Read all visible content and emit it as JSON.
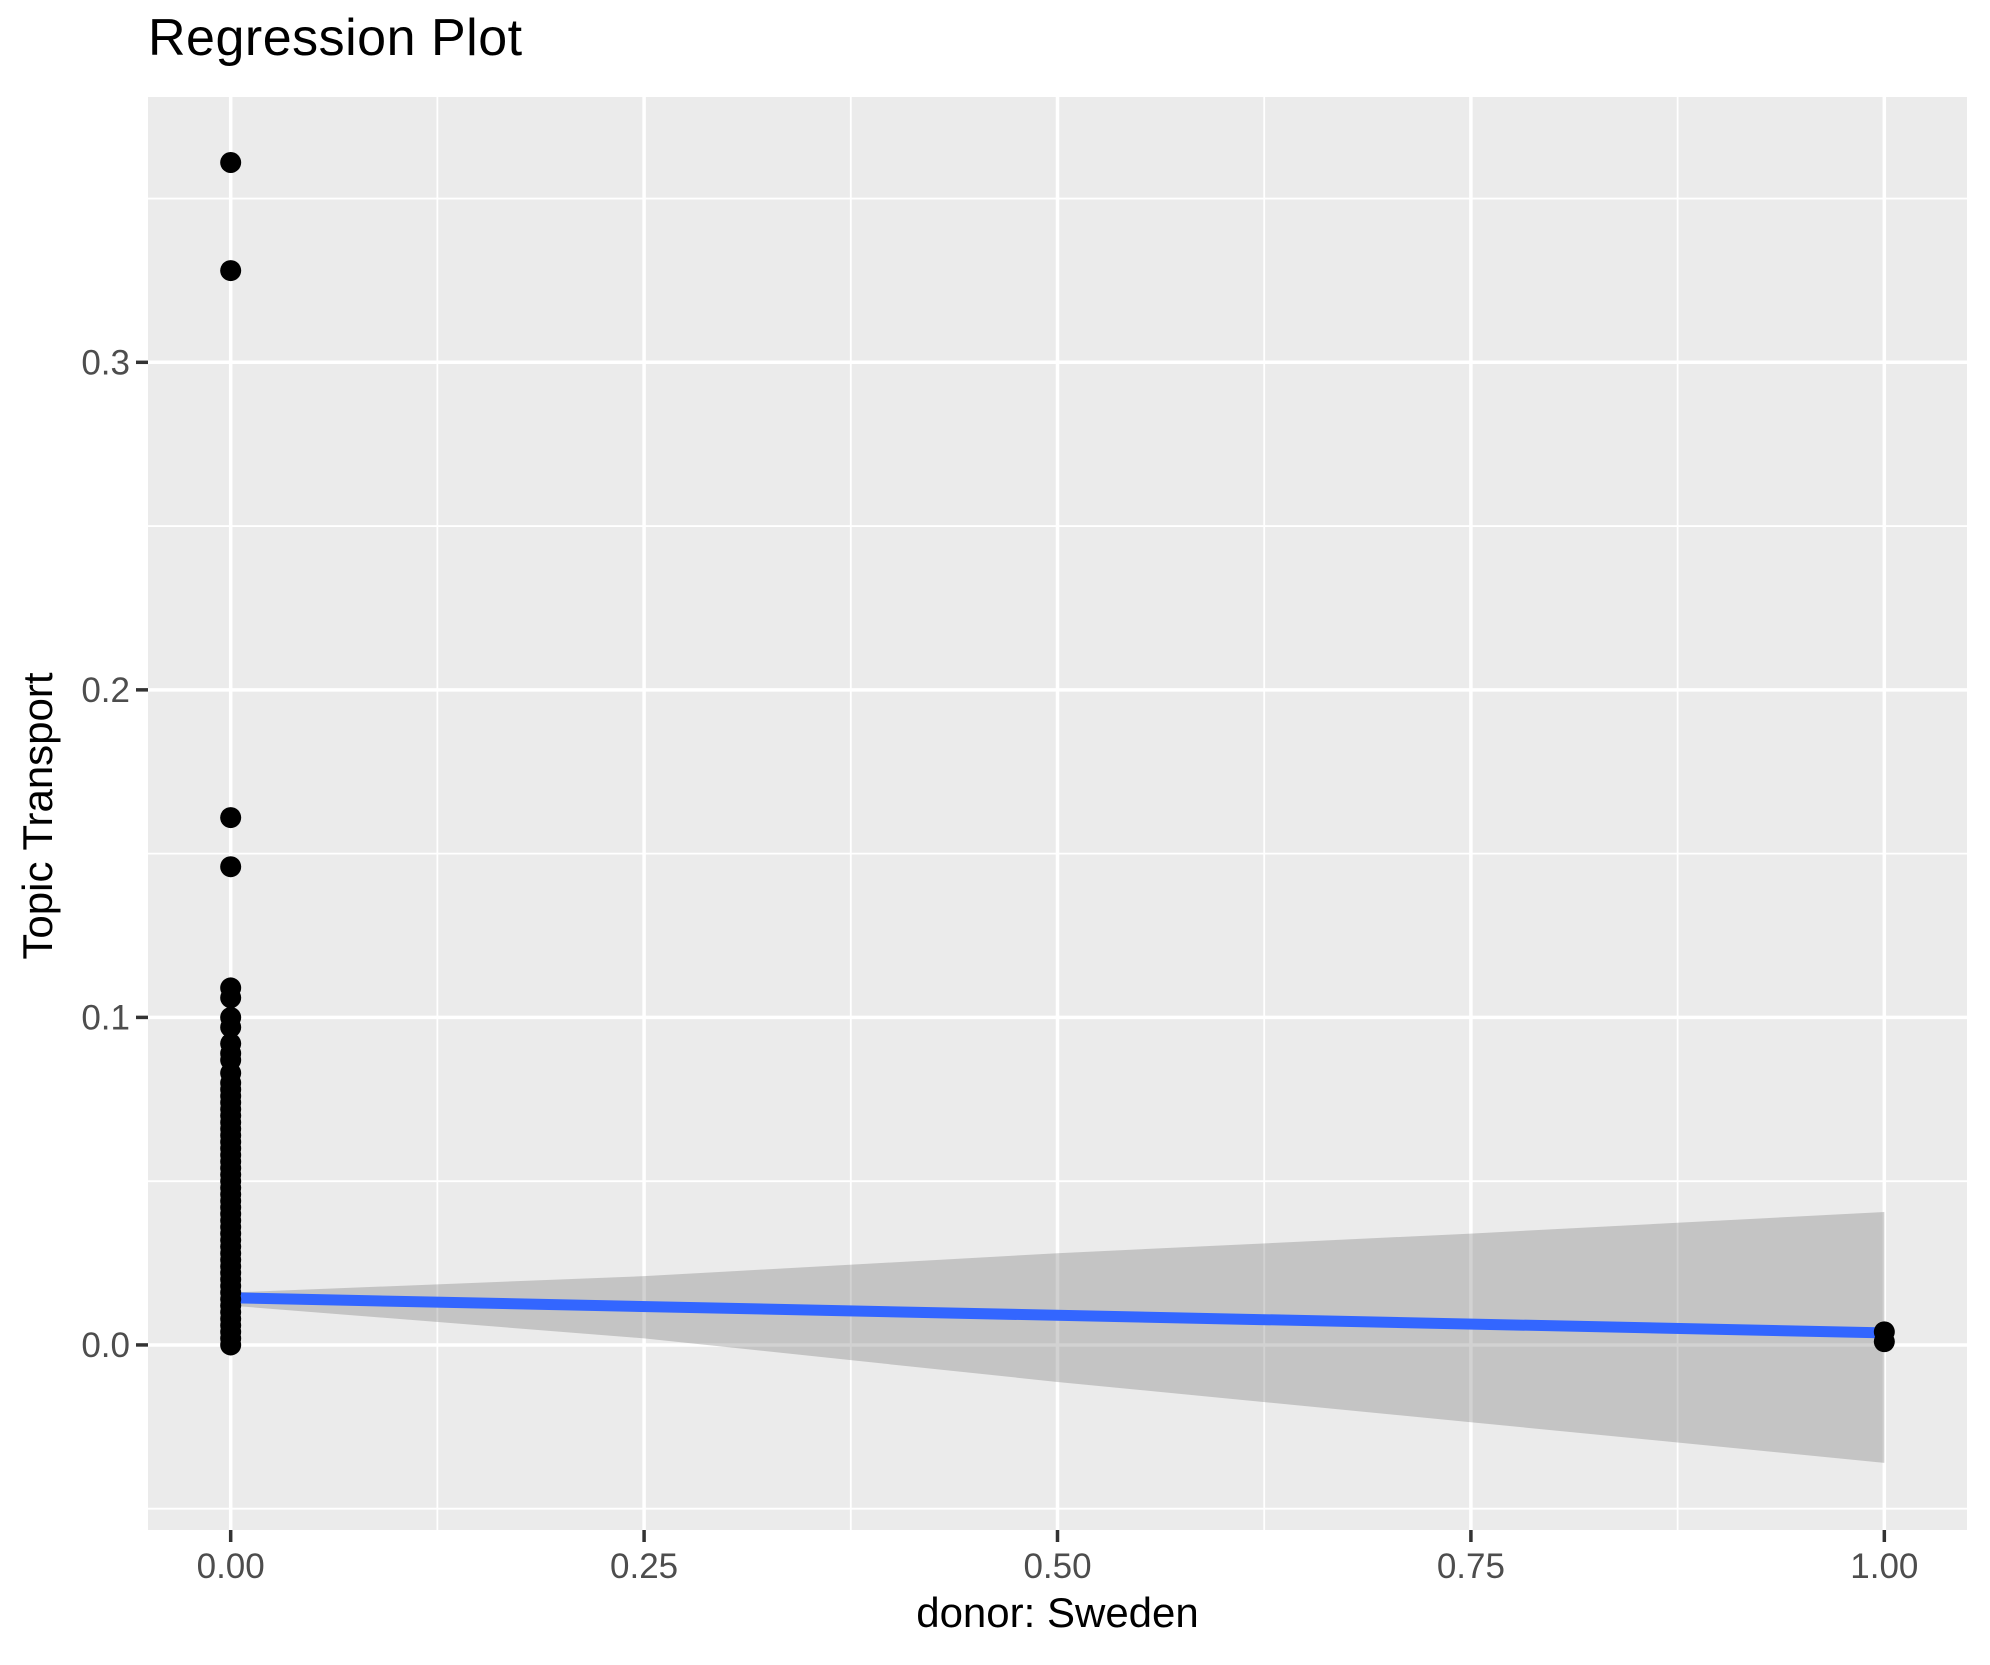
{
  "chart_data": {
    "type": "scatter",
    "subtype": "regression plot with linear fit and confidence ribbon",
    "title": "Regression Plot",
    "xlabel": "donor: Sweden",
    "ylabel": "Topic Transport",
    "xlim": [
      -0.05,
      1.05
    ],
    "ylim": [
      -0.0565,
      0.381
    ],
    "grid": "white major+minor gridlines on gray panel",
    "legend_position": "none",
    "x_major_ticks": {
      "values": [
        0,
        0.25,
        0.5,
        0.75,
        1.0
      ],
      "labels": [
        "0.00",
        "0.25",
        "0.50",
        "0.75",
        "1.00"
      ]
    },
    "y_major_ticks": {
      "values": [
        0,
        0.1,
        0.2,
        0.3
      ],
      "labels": [
        "0.0",
        "0.1",
        "0.2",
        "0.3"
      ]
    },
    "x_minor_ticks": [
      0.125,
      0.375,
      0.625,
      0.875
    ],
    "y_minor_ticks": [
      -0.05,
      0.05,
      0.15,
      0.25,
      0.35
    ],
    "series": [
      {
        "name": "observations at donor=0",
        "type": "scatter",
        "x_value": 0,
        "y_values": [
          0.361,
          0.328,
          0.161,
          0.146,
          0.109,
          0.106,
          0.1,
          0.097,
          0.092,
          0.089,
          0.087,
          0.083,
          0.08,
          0.078,
          0.076,
          0.074,
          0.072,
          0.07,
          0.068,
          0.066,
          0.064,
          0.062,
          0.06,
          0.058,
          0.056,
          0.054,
          0.052,
          0.05,
          0.048,
          0.046,
          0.044,
          0.042,
          0.04,
          0.038,
          0.036,
          0.034,
          0.032,
          0.03,
          0.028,
          0.026,
          0.024,
          0.022,
          0.02,
          0.018,
          0.016,
          0.014,
          0.012,
          0.01,
          0.008,
          0.006,
          0.004,
          0.002,
          0.0
        ]
      },
      {
        "name": "observations at donor=1",
        "type": "scatter",
        "x_value": 1,
        "y_values": [
          0.004,
          0.001
        ]
      },
      {
        "name": "linear fit",
        "type": "line",
        "x": [
          0,
          1
        ],
        "y": [
          0.0144,
          0.0037
        ]
      },
      {
        "name": "confidence band",
        "type": "ribbon",
        "x": [
          0,
          0.25,
          0.5,
          0.75,
          1.0
        ],
        "upper": [
          0.016,
          0.021,
          0.028,
          0.034,
          0.0406
        ],
        "lower": [
          0.012,
          0.002,
          -0.0113,
          -0.0236,
          -0.036
        ]
      }
    ],
    "colors": {
      "panel_bg": "#EBEBEB",
      "gridline": "#FFFFFF",
      "point": "#000000",
      "fit_line": "#3366FF",
      "ribbon": "rgba(115,115,115,0.32)",
      "tick_label": "#4D4D4D",
      "tick_mark": "#333333",
      "title_text": "#000000"
    }
  }
}
